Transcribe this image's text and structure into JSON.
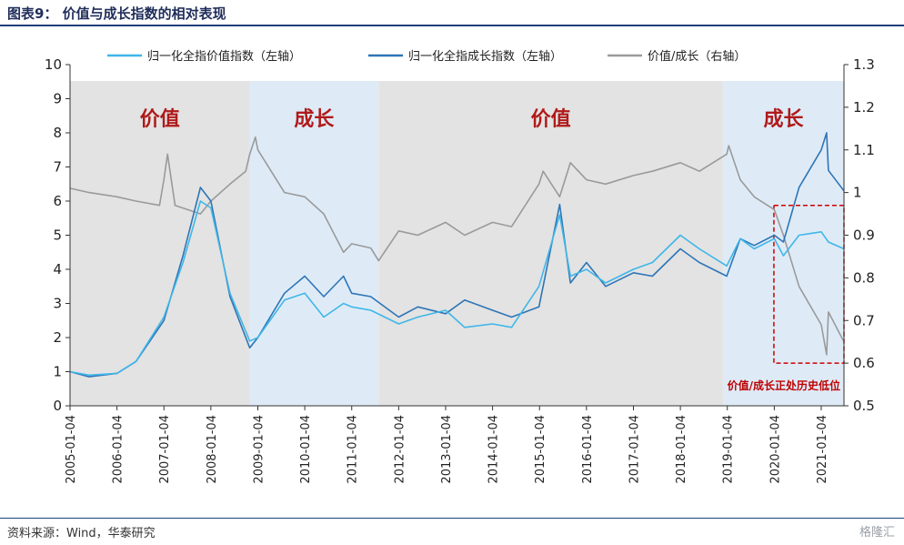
{
  "header": {
    "title": "图表9：  价值与成长指数的相对表现"
  },
  "footer": {
    "source": "资料来源：Wind，华泰研究",
    "watermark": "格隆汇"
  },
  "chart_data": {
    "type": "line",
    "title": "图表9：  价值与成长指数的相对表现",
    "left_axis": {
      "ylim": [
        0,
        10
      ],
      "ticks": [
        "0",
        "1",
        "2",
        "3",
        "4",
        "5",
        "6",
        "7",
        "8",
        "9",
        "10"
      ]
    },
    "right_axis": {
      "ylim": [
        0.5,
        1.3
      ],
      "ticks": [
        "0.5",
        "0.6",
        "0.7",
        "0.8",
        "0.9",
        "1",
        "1.1",
        "1.2",
        "1.3"
      ]
    },
    "x_ticks": [
      "2005-01-04",
      "2006-01-04",
      "2007-01-04",
      "2008-01-04",
      "2009-01-04",
      "2010-01-04",
      "2011-01-04",
      "2012-01-04",
      "2013-01-04",
      "2014-01-04",
      "2015-01-04",
      "2016-01-04",
      "2017-01-04",
      "2018-01-04",
      "2019-01-04",
      "2020-01-04",
      "2021-01-04"
    ],
    "legend_position": "top",
    "regimes": [
      {
        "label": "价值",
        "start": "2005-01-04",
        "end": "2008-11-01",
        "color": "#e3e3e3"
      },
      {
        "label": "成长",
        "start": "2008-11-01",
        "end": "2011-08-01",
        "color": "#deebf7"
      },
      {
        "label": "价值",
        "start": "2011-08-01",
        "end": "2018-12-01",
        "color": "#e3e3e3"
      },
      {
        "label": "成长",
        "start": "2018-12-01",
        "end": "2021-09-01",
        "color": "#deebf7"
      }
    ],
    "annotation": {
      "text": "价值/成长正处历史低位",
      "box_start": "2020-01-01",
      "box_end": "2021-09-01",
      "box_y": [
        0.6,
        0.97
      ]
    },
    "series": [
      {
        "name": "归一化全指价值指数（左轴）",
        "axis": "left",
        "color": "#3fb6e8",
        "points": [
          [
            "2005-01-04",
            1.0
          ],
          [
            "2005-06-01",
            0.9
          ],
          [
            "2006-01-04",
            0.95
          ],
          [
            "2006-06-01",
            1.3
          ],
          [
            "2007-01-04",
            2.6
          ],
          [
            "2007-06-01",
            4.2
          ],
          [
            "2007-10-15",
            6.0
          ],
          [
            "2008-01-04",
            5.8
          ],
          [
            "2008-06-01",
            3.3
          ],
          [
            "2008-11-01",
            1.9
          ],
          [
            "2009-01-04",
            2.0
          ],
          [
            "2009-07-30",
            3.1
          ],
          [
            "2010-01-04",
            3.3
          ],
          [
            "2010-06-01",
            2.6
          ],
          [
            "2010-11-01",
            3.0
          ],
          [
            "2011-01-04",
            2.9
          ],
          [
            "2011-06-01",
            2.8
          ],
          [
            "2012-01-04",
            2.4
          ],
          [
            "2012-06-01",
            2.6
          ],
          [
            "2013-01-04",
            2.8
          ],
          [
            "2013-06-01",
            2.3
          ],
          [
            "2014-01-04",
            2.4
          ],
          [
            "2014-06-01",
            2.3
          ],
          [
            "2014-12-31",
            3.5
          ],
          [
            "2015-06-10",
            5.6
          ],
          [
            "2015-09-01",
            3.8
          ],
          [
            "2016-01-04",
            4.0
          ],
          [
            "2016-06-01",
            3.6
          ],
          [
            "2017-01-04",
            4.0
          ],
          [
            "2017-06-01",
            4.2
          ],
          [
            "2018-01-04",
            5.0
          ],
          [
            "2018-06-01",
            4.6
          ],
          [
            "2018-12-31",
            4.1
          ],
          [
            "2019-04-15",
            4.9
          ],
          [
            "2019-08-01",
            4.6
          ],
          [
            "2020-01-04",
            4.9
          ],
          [
            "2020-03-15",
            4.4
          ],
          [
            "2020-07-15",
            5.0
          ],
          [
            "2021-01-04",
            5.1
          ],
          [
            "2021-03-01",
            4.8
          ],
          [
            "2021-06-30",
            4.6
          ]
        ]
      },
      {
        "name": "归一化全指成长指数（左轴）",
        "axis": "left",
        "color": "#2e75b6",
        "points": [
          [
            "2005-01-04",
            1.0
          ],
          [
            "2005-06-01",
            0.85
          ],
          [
            "2006-01-04",
            0.95
          ],
          [
            "2006-06-01",
            1.3
          ],
          [
            "2007-01-04",
            2.5
          ],
          [
            "2007-06-01",
            4.4
          ],
          [
            "2007-10-15",
            6.4
          ],
          [
            "2008-01-04",
            6.0
          ],
          [
            "2008-06-01",
            3.2
          ],
          [
            "2008-11-01",
            1.7
          ],
          [
            "2009-01-04",
            2.0
          ],
          [
            "2009-07-30",
            3.3
          ],
          [
            "2010-01-04",
            3.8
          ],
          [
            "2010-06-01",
            3.2
          ],
          [
            "2010-11-01",
            3.8
          ],
          [
            "2011-01-04",
            3.3
          ],
          [
            "2011-06-01",
            3.2
          ],
          [
            "2012-01-04",
            2.6
          ],
          [
            "2012-06-01",
            2.9
          ],
          [
            "2013-01-04",
            2.7
          ],
          [
            "2013-06-01",
            3.1
          ],
          [
            "2014-01-04",
            2.8
          ],
          [
            "2014-06-01",
            2.6
          ],
          [
            "2014-12-31",
            2.9
          ],
          [
            "2015-06-10",
            5.9
          ],
          [
            "2015-09-01",
            3.6
          ],
          [
            "2016-01-04",
            4.2
          ],
          [
            "2016-06-01",
            3.5
          ],
          [
            "2017-01-04",
            3.9
          ],
          [
            "2017-06-01",
            3.8
          ],
          [
            "2018-01-04",
            4.6
          ],
          [
            "2018-06-01",
            4.2
          ],
          [
            "2018-12-31",
            3.8
          ],
          [
            "2019-04-15",
            4.9
          ],
          [
            "2019-08-01",
            4.7
          ],
          [
            "2020-01-04",
            5.0
          ],
          [
            "2020-03-15",
            4.8
          ],
          [
            "2020-07-15",
            6.4
          ],
          [
            "2021-01-04",
            7.5
          ],
          [
            "2021-02-15",
            8.0
          ],
          [
            "2021-03-01",
            6.9
          ],
          [
            "2021-06-30",
            6.3
          ]
        ]
      },
      {
        "name": "价值/成长（右轴）",
        "axis": "right",
        "color": "#9a9a9a",
        "points": [
          [
            "2005-01-04",
            1.01
          ],
          [
            "2005-06-01",
            1.0
          ],
          [
            "2006-01-04",
            0.99
          ],
          [
            "2006-06-01",
            0.98
          ],
          [
            "2006-12-01",
            0.97
          ],
          [
            "2007-01-04",
            1.03
          ],
          [
            "2007-02-01",
            1.09
          ],
          [
            "2007-04-01",
            0.97
          ],
          [
            "2007-10-15",
            0.95
          ],
          [
            "2008-01-04",
            0.98
          ],
          [
            "2008-06-01",
            1.02
          ],
          [
            "2008-10-01",
            1.05
          ],
          [
            "2008-11-01",
            1.09
          ],
          [
            "2008-12-15",
            1.13
          ],
          [
            "2009-01-04",
            1.1
          ],
          [
            "2009-07-30",
            1.0
          ],
          [
            "2010-01-04",
            0.99
          ],
          [
            "2010-06-01",
            0.95
          ],
          [
            "2010-11-01",
            0.86
          ],
          [
            "2011-01-04",
            0.88
          ],
          [
            "2011-06-01",
            0.87
          ],
          [
            "2011-08-01",
            0.84
          ],
          [
            "2012-01-04",
            0.91
          ],
          [
            "2012-06-01",
            0.9
          ],
          [
            "2013-01-04",
            0.93
          ],
          [
            "2013-06-01",
            0.9
          ],
          [
            "2014-01-04",
            0.93
          ],
          [
            "2014-06-01",
            0.92
          ],
          [
            "2014-12-31",
            1.02
          ],
          [
            "2015-02-01",
            1.05
          ],
          [
            "2015-06-10",
            0.99
          ],
          [
            "2015-09-01",
            1.07
          ],
          [
            "2016-01-04",
            1.03
          ],
          [
            "2016-06-01",
            1.02
          ],
          [
            "2017-01-04",
            1.04
          ],
          [
            "2017-06-01",
            1.05
          ],
          [
            "2018-01-04",
            1.07
          ],
          [
            "2018-06-01",
            1.05
          ],
          [
            "2018-12-31",
            1.09
          ],
          [
            "2019-01-15",
            1.11
          ],
          [
            "2019-04-15",
            1.03
          ],
          [
            "2019-08-01",
            0.99
          ],
          [
            "2020-01-04",
            0.96
          ],
          [
            "2020-03-15",
            0.9
          ],
          [
            "2020-07-15",
            0.78
          ],
          [
            "2021-01-04",
            0.69
          ],
          [
            "2021-02-15",
            0.62
          ],
          [
            "2021-03-01",
            0.72
          ],
          [
            "2021-06-30",
            0.65
          ]
        ]
      }
    ]
  }
}
